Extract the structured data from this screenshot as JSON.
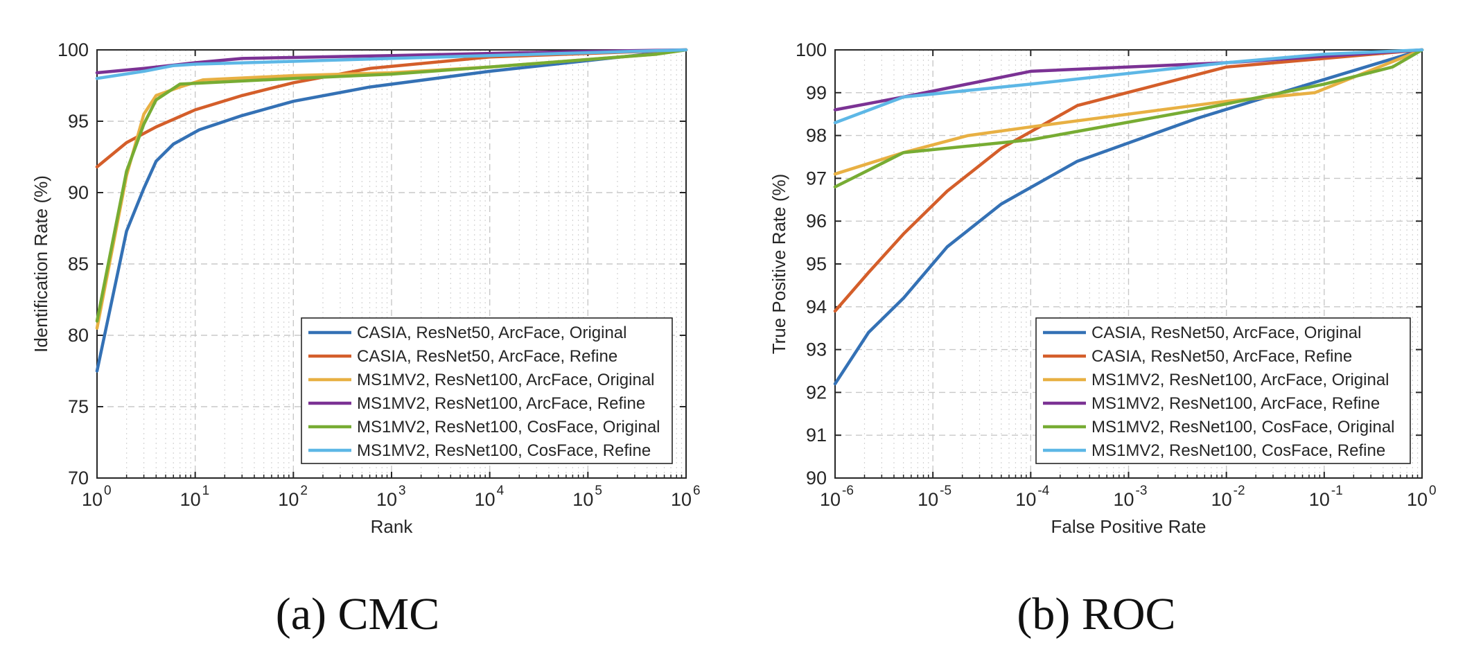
{
  "colors": {
    "casia_original": "#3471B5",
    "casia_refine": "#D45E2A",
    "ms1mv2_arc_original": "#E8B043",
    "ms1mv2_arc_refine": "#7B3294",
    "ms1mv2_cos_original": "#77AC33",
    "ms1mv2_cos_refine": "#5DB7E6"
  },
  "chart_data": [
    {
      "type": "line",
      "caption": "(a)  CMC",
      "xlabel": "Rank",
      "ylabel": "Identification Rate (%)",
      "xscale": "log",
      "xlim": [
        1,
        1000000
      ],
      "ylim": [
        70,
        100
      ],
      "xticks": [
        {
          "base": "10",
          "exp": "0"
        },
        {
          "base": "10",
          "exp": "1"
        },
        {
          "base": "10",
          "exp": "2"
        },
        {
          "base": "10",
          "exp": "3"
        },
        {
          "base": "10",
          "exp": "4"
        },
        {
          "base": "10",
          "exp": "5"
        },
        {
          "base": "10",
          "exp": "6"
        }
      ],
      "yticks": [
        "70",
        "75",
        "80",
        "85",
        "90",
        "95",
        "100"
      ],
      "grid": true,
      "legend_position": "bottom-right",
      "series": [
        {
          "name": "CASIA, ResNet50, ArcFace, Original",
          "color_key": "casia_original",
          "x": [
            1,
            2,
            3,
            4,
            6,
            11,
            30,
            100,
            600,
            10000,
            1000000
          ],
          "y": [
            77.5,
            87.3,
            90.3,
            92.2,
            93.4,
            94.4,
            95.4,
            96.4,
            97.4,
            98.5,
            100
          ]
        },
        {
          "name": "CASIA, ResNet50, ArcFace, Refine",
          "color_key": "casia_refine",
          "x": [
            1,
            2,
            4,
            10,
            30,
            100,
            600,
            10000,
            1000000
          ],
          "y": [
            91.8,
            93.5,
            94.6,
            95.8,
            96.8,
            97.7,
            98.7,
            99.5,
            100
          ]
        },
        {
          "name": "MS1MV2, ResNet100, ArcFace, Original",
          "color_key": "ms1mv2_arc_original",
          "x": [
            1,
            2,
            3,
            4,
            7,
            12,
            100,
            1000,
            10000,
            500000,
            1000000
          ],
          "y": [
            80.5,
            91.2,
            95.5,
            96.8,
            97.4,
            97.9,
            98.2,
            98.4,
            98.8,
            99.7,
            100
          ]
        },
        {
          "name": "MS1MV2, ResNet100, ArcFace, Refine",
          "color_key": "ms1mv2_arc_refine",
          "x": [
            1,
            3,
            10,
            30,
            1000,
            100000,
            1000000
          ],
          "y": [
            98.4,
            98.7,
            99.1,
            99.4,
            99.6,
            99.9,
            100
          ]
        },
        {
          "name": "MS1MV2, ResNet100, CosFace, Original",
          "color_key": "ms1mv2_cos_original",
          "x": [
            1,
            2,
            3,
            4,
            7,
            100,
            1000,
            10000,
            500000,
            1000000
          ],
          "y": [
            81.0,
            91.5,
            94.8,
            96.5,
            97.6,
            98.0,
            98.3,
            98.8,
            99.7,
            100
          ]
        },
        {
          "name": "MS1MV2, ResNet100, CosFace, Refine",
          "color_key": "ms1mv2_cos_refine",
          "x": [
            1,
            3,
            6,
            10,
            100,
            10000,
            1000000
          ],
          "y": [
            98.0,
            98.5,
            98.9,
            99.0,
            99.2,
            99.6,
            100
          ]
        }
      ]
    },
    {
      "type": "line",
      "caption": "(b)  ROC",
      "xlabel": "False Positive Rate",
      "ylabel": "True Positive Rate (%)",
      "xscale": "log",
      "xlim": [
        1e-06,
        1
      ],
      "ylim": [
        90,
        100
      ],
      "xticks": [
        {
          "base": "10",
          "exp": "-6"
        },
        {
          "base": "10",
          "exp": "-5"
        },
        {
          "base": "10",
          "exp": "-4"
        },
        {
          "base": "10",
          "exp": "-3"
        },
        {
          "base": "10",
          "exp": "-2"
        },
        {
          "base": "10",
          "exp": "-1"
        },
        {
          "base": "10",
          "exp": "0"
        }
      ],
      "yticks": [
        "90",
        "91",
        "92",
        "93",
        "94",
        "95",
        "96",
        "97",
        "98",
        "99",
        "100"
      ],
      "grid": true,
      "legend_position": "bottom-right",
      "series": [
        {
          "name": "CASIA, ResNet50, ArcFace, Original",
          "color_key": "casia_original",
          "x": [
            1e-06,
            2.2e-06,
            5e-06,
            1.4e-05,
            5e-05,
            0.0003,
            0.005,
            0.05,
            1
          ],
          "y": [
            92.2,
            93.4,
            94.2,
            95.4,
            96.4,
            97.4,
            98.4,
            99.1,
            100
          ]
        },
        {
          "name": "CASIA, ResNet50, ArcFace, Refine",
          "color_key": "casia_refine",
          "x": [
            1e-06,
            2.2e-06,
            5e-06,
            1.4e-05,
            5e-05,
            0.0003,
            0.01,
            1
          ],
          "y": [
            93.9,
            94.8,
            95.7,
            96.7,
            97.7,
            98.7,
            99.6,
            100
          ]
        },
        {
          "name": "MS1MV2, ResNet100, ArcFace, Original",
          "color_key": "ms1mv2_arc_original",
          "x": [
            1e-06,
            5e-06,
            2.3e-05,
            0.0001,
            0.01,
            0.08,
            1
          ],
          "y": [
            97.1,
            97.6,
            98.0,
            98.2,
            98.8,
            99.0,
            100
          ]
        },
        {
          "name": "MS1MV2, ResNet100, ArcFace, Refine",
          "color_key": "ms1mv2_arc_refine",
          "x": [
            1e-06,
            5e-06,
            0.0001,
            0.01,
            1
          ],
          "y": [
            98.6,
            98.9,
            99.5,
            99.7,
            100
          ]
        },
        {
          "name": "MS1MV2, ResNet100, CosFace, Original",
          "color_key": "ms1mv2_cos_original",
          "x": [
            1e-06,
            5e-06,
            0.0001,
            0.005,
            0.1,
            0.5,
            1
          ],
          "y": [
            96.8,
            97.6,
            97.9,
            98.6,
            99.2,
            99.6,
            100
          ]
        },
        {
          "name": "MS1MV2, ResNet100, CosFace, Refine",
          "color_key": "ms1mv2_cos_refine",
          "x": [
            1e-06,
            5e-06,
            0.0001,
            0.01,
            0.1,
            1
          ],
          "y": [
            98.3,
            98.9,
            99.2,
            99.7,
            99.9,
            100
          ]
        }
      ]
    }
  ]
}
